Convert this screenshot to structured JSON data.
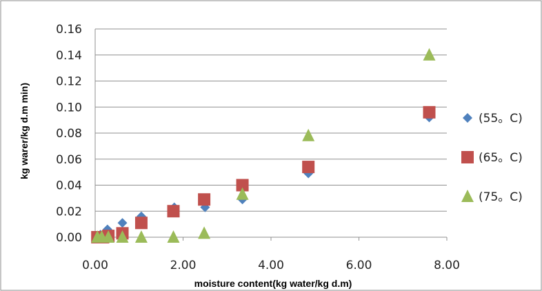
{
  "chart_data": {
    "type": "scatter",
    "title": "",
    "xlabel": "moisture content(kg water/kg d.m)",
    "ylabel": "kg warer/kg d.m min)",
    "xlim": [
      0,
      8
    ],
    "ylim": [
      0,
      0.16
    ],
    "x_ticks": [
      "0.00",
      "2.00",
      "4.00",
      "6.00",
      "8.00"
    ],
    "y_ticks": [
      "0.00",
      "0.02",
      "0.04",
      "0.06",
      "0.08",
      "0.10",
      "0.12",
      "0.14",
      "0.16"
    ],
    "grid": "horizontal",
    "legend_position": "right",
    "series": [
      {
        "name": "(55。C)",
        "marker": "diamond",
        "color": "#4F81BD",
        "points": [
          {
            "x": 0.05,
            "y": 0.001
          },
          {
            "x": 0.12,
            "y": 0.002
          },
          {
            "x": 0.28,
            "y": 0.006
          },
          {
            "x": 0.62,
            "y": 0.011
          },
          {
            "x": 1.05,
            "y": 0.016
          },
          {
            "x": 1.8,
            "y": 0.023
          },
          {
            "x": 2.5,
            "y": 0.023
          },
          {
            "x": 3.35,
            "y": 0.029
          },
          {
            "x": 4.85,
            "y": 0.049
          },
          {
            "x": 7.6,
            "y": 0.092
          }
        ]
      },
      {
        "name": "(65。C)",
        "marker": "square",
        "color": "#C0504D",
        "points": [
          {
            "x": 0.05,
            "y": 0.0
          },
          {
            "x": 0.18,
            "y": 0.0
          },
          {
            "x": 0.3,
            "y": 0.001
          },
          {
            "x": 0.62,
            "y": 0.003
          },
          {
            "x": 1.05,
            "y": 0.011
          },
          {
            "x": 1.78,
            "y": 0.02
          },
          {
            "x": 2.48,
            "y": 0.029
          },
          {
            "x": 3.35,
            "y": 0.04
          },
          {
            "x": 4.85,
            "y": 0.054
          },
          {
            "x": 7.6,
            "y": 0.096
          }
        ]
      },
      {
        "name": "(75。C)",
        "marker": "triangle",
        "color": "#9BBB59",
        "points": [
          {
            "x": 0.05,
            "y": 0.0
          },
          {
            "x": 0.15,
            "y": 0.0
          },
          {
            "x": 0.3,
            "y": 0.0
          },
          {
            "x": 0.62,
            "y": 0.0
          },
          {
            "x": 1.05,
            "y": 0.0
          },
          {
            "x": 1.78,
            "y": 0.0
          },
          {
            "x": 2.48,
            "y": 0.003
          },
          {
            "x": 3.35,
            "y": 0.033
          },
          {
            "x": 4.85,
            "y": 0.078
          },
          {
            "x": 7.6,
            "y": 0.14
          }
        ]
      }
    ]
  }
}
